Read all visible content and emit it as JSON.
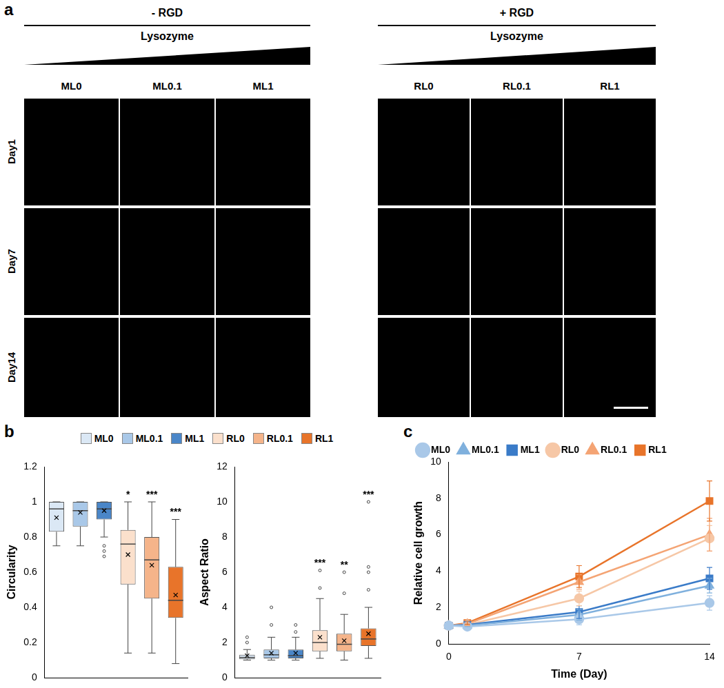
{
  "panel_a": {
    "label": "a",
    "groups": [
      {
        "title": "- RGD",
        "gradient": "Lysozyme",
        "columns": [
          "ML0",
          "ML0.1",
          "ML1"
        ]
      },
      {
        "title": "+ RGD",
        "gradient": "Lysozyme",
        "columns": [
          "RL0",
          "RL0.1",
          "RL1"
        ]
      }
    ],
    "rows": [
      "Day1",
      "Day7",
      "Day14"
    ]
  },
  "chart_data": [
    {
      "panel": "b",
      "type": "box",
      "y_label": "Circularity",
      "categories": [
        "ML0",
        "ML0.1",
        "ML1",
        "RL0",
        "RL0.1",
        "RL1"
      ],
      "colors": [
        "#dbe8f5",
        "#a9c8e8",
        "#4a86c8",
        "#fbe0cc",
        "#f5b48a",
        "#e8742a"
      ],
      "boxes": [
        {
          "min": 0.75,
          "q1": 0.83,
          "median": 0.96,
          "q3": 1.0,
          "max": 1.0,
          "mean": 0.91,
          "outliers": []
        },
        {
          "min": 0.75,
          "q1": 0.86,
          "median": 0.95,
          "q3": 1.0,
          "max": 1.0,
          "mean": 0.94,
          "outliers": []
        },
        {
          "min": 0.8,
          "q1": 0.9,
          "median": 0.96,
          "q3": 1.0,
          "max": 1.0,
          "mean": 0.95,
          "outliers": [
            0.69,
            0.72,
            0.75
          ]
        },
        {
          "min": 0.14,
          "q1": 0.53,
          "median": 0.76,
          "q3": 0.84,
          "max": 1.0,
          "mean": 0.7,
          "outliers": []
        },
        {
          "min": 0.14,
          "q1": 0.45,
          "median": 0.67,
          "q3": 0.8,
          "max": 1.0,
          "mean": 0.64,
          "outliers": []
        },
        {
          "min": 0.08,
          "q1": 0.34,
          "median": 0.44,
          "q3": 0.63,
          "max": 0.9,
          "mean": 0.47,
          "outliers": []
        }
      ],
      "annotations": [
        null,
        null,
        null,
        "*",
        "***",
        "***"
      ],
      "ylim": [
        0,
        1.2
      ],
      "yticks": [
        0,
        0.2,
        0.4,
        0.6,
        0.8,
        1,
        1.2
      ],
      "tick_labels": "y",
      "grid": false,
      "legend": "top"
    },
    {
      "type": "box",
      "y_label": "Aspect Ratio",
      "categories": [
        "ML0",
        "ML0.1",
        "ML1",
        "RL0",
        "RL0.1",
        "RL1"
      ],
      "colors": [
        "#dbe8f5",
        "#a9c8e8",
        "#4a86c8",
        "#fbe0cc",
        "#f5b48a",
        "#e8742a"
      ],
      "boxes": [
        {
          "min": 1.0,
          "q1": 1.05,
          "median": 1.15,
          "q3": 1.3,
          "max": 1.6,
          "mean": 1.25,
          "outliers": [
            2.0,
            2.3
          ]
        },
        {
          "min": 1.0,
          "q1": 1.1,
          "median": 1.3,
          "q3": 1.6,
          "max": 2.3,
          "mean": 1.4,
          "outliers": [
            3.0,
            4.0
          ]
        },
        {
          "min": 1.0,
          "q1": 1.1,
          "median": 1.25,
          "q3": 1.6,
          "max": 2.3,
          "mean": 1.4,
          "outliers": [
            2.6,
            3.0
          ]
        },
        {
          "min": 1.1,
          "q1": 1.5,
          "median": 2.0,
          "q3": 2.7,
          "max": 4.5,
          "mean": 2.3,
          "outliers": [
            5.1,
            6.1
          ]
        },
        {
          "min": 1.0,
          "q1": 1.5,
          "median": 1.9,
          "q3": 2.5,
          "max": 3.6,
          "mean": 2.1,
          "outliers": [
            4.8,
            6.0
          ]
        },
        {
          "min": 1.1,
          "q1": 1.8,
          "median": 2.2,
          "q3": 2.8,
          "max": 4.0,
          "mean": 2.5,
          "outliers": [
            5.0,
            6.0,
            6.3,
            10.0
          ]
        }
      ],
      "annotations": [
        null,
        null,
        null,
        "***",
        "**",
        "***"
      ],
      "ylim": [
        0,
        12
      ],
      "yticks": [
        0,
        2,
        4,
        6,
        8,
        10,
        12
      ],
      "tick_labels": "y",
      "grid": false
    },
    {
      "panel": "c",
      "type": "line",
      "x_label": "Time (Day)",
      "y_label": "Relative cell growth",
      "x": [
        0,
        1,
        7,
        14
      ],
      "series": [
        {
          "name": "ML0",
          "color": "#a9c8e8",
          "marker": "circle",
          "values": [
            1,
            0.95,
            1.35,
            2.25
          ],
          "error": [
            0,
            0.05,
            0.3,
            0.4
          ]
        },
        {
          "name": "ML0.1",
          "color": "#7fb0dd",
          "marker": "triangle",
          "values": [
            1,
            1.0,
            1.6,
            3.2
          ],
          "error": [
            0,
            0.05,
            0.3,
            0.4
          ]
        },
        {
          "name": "ML1",
          "color": "#3a7bc8",
          "marker": "square",
          "values": [
            1,
            1.05,
            1.75,
            3.6
          ],
          "error": [
            0,
            0.05,
            0.35,
            0.6
          ]
        },
        {
          "name": "RL0",
          "color": "#f6c7a6",
          "marker": "circle",
          "values": [
            1,
            1.05,
            2.5,
            5.8
          ],
          "error": [
            0,
            0.05,
            0.4,
            0.7
          ]
        },
        {
          "name": "RL0.1",
          "color": "#f4a474",
          "marker": "triangle",
          "values": [
            1,
            1.1,
            3.4,
            6.0
          ],
          "error": [
            0,
            0.05,
            0.4,
            0.9
          ]
        },
        {
          "name": "RL1",
          "color": "#e8742a",
          "marker": "square",
          "values": [
            1,
            1.15,
            3.7,
            7.85
          ],
          "error": [
            0,
            0.1,
            0.6,
            1.1
          ]
        }
      ],
      "xlim": [
        0,
        14
      ],
      "xticks": [
        0,
        7,
        14
      ],
      "ylim": [
        0,
        10
      ],
      "yticks": [
        0,
        2,
        4,
        6,
        8,
        10
      ],
      "grid": false,
      "legend": "top"
    }
  ]
}
